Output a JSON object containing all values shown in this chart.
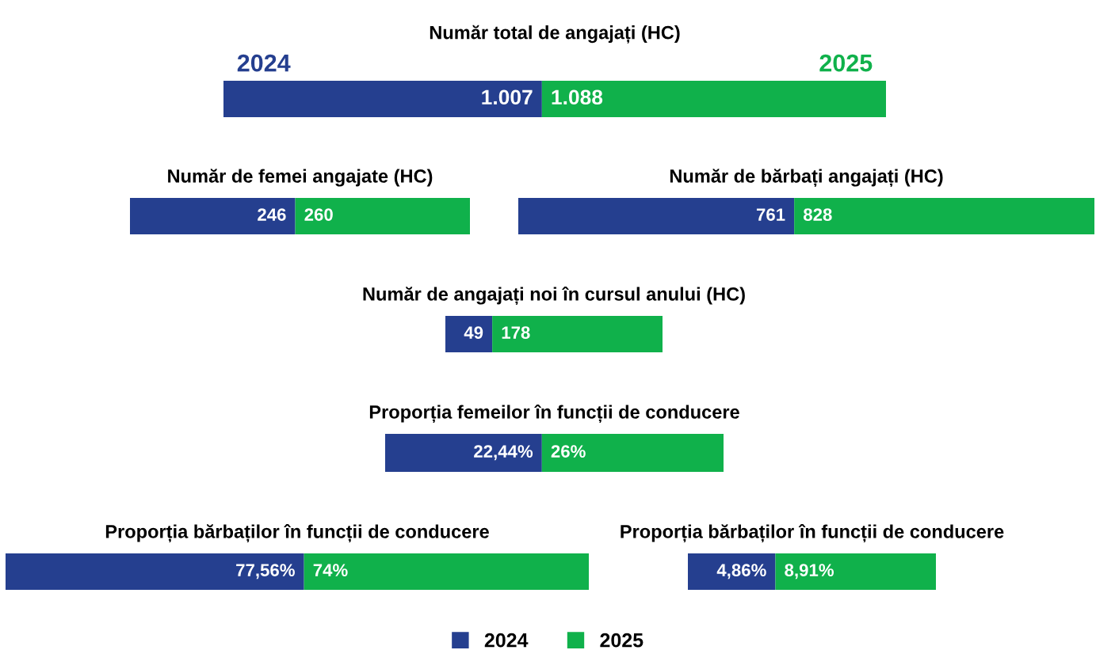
{
  "chart_data": [
    {
      "type": "bar",
      "orientation": "horizontal",
      "stacked": true,
      "title": "Număr total de angajați (HC)",
      "categories": [
        null
      ],
      "tick_labels": false,
      "data_labels": true,
      "legend": "bottom",
      "series": [
        {
          "name": "2024",
          "color": "#253f8f",
          "values": [
            1007
          ],
          "value_labels": [
            "1.007"
          ]
        },
        {
          "name": "2025",
          "color": "#10b14b",
          "values": [
            1088
          ],
          "value_labels": [
            "1.088"
          ]
        }
      ]
    },
    {
      "type": "bar",
      "orientation": "horizontal",
      "stacked": true,
      "title": "Număr de femei angajate (HC)",
      "categories": [
        null
      ],
      "tick_labels": false,
      "data_labels": true,
      "series": [
        {
          "color": "#253f8f",
          "values": [
            246
          ]
        },
        {
          "color": "#10b14b",
          "values": [
            260
          ]
        }
      ]
    },
    {
      "type": "bar",
      "orientation": "horizontal",
      "stacked": true,
      "title": "Număr de bărbați angajați (HC)",
      "categories": [
        null
      ],
      "tick_labels": false,
      "data_labels": true,
      "series": [
        {
          "color": "#253f8f",
          "values": [
            761
          ]
        },
        {
          "color": "#10b14b",
          "values": [
            828
          ]
        }
      ]
    },
    {
      "type": "bar",
      "orientation": "horizontal",
      "stacked": true,
      "title": "Număr de angajați noi în cursul anului (HC)",
      "categories": [
        null
      ],
      "tick_labels": false,
      "data_labels": true,
      "series": [
        {
          "color": "#253f8f",
          "values": [
            49
          ]
        },
        {
          "color": "#10b14b",
          "values": [
            178
          ]
        }
      ]
    },
    {
      "type": "bar",
      "orientation": "horizontal",
      "stacked": true,
      "title": "Proporția femeilor în funcții de conducere",
      "categories": [
        null
      ],
      "tick_labels": false,
      "data_labels": true,
      "series": [
        {
          "color": "#253f8f",
          "values": [
            22.44
          ],
          "value_labels": [
            "22,44%"
          ]
        },
        {
          "color": "#10b14b",
          "values": [
            26
          ],
          "value_labels": [
            "26%"
          ]
        }
      ]
    },
    {
      "type": "bar",
      "orientation": "horizontal",
      "stacked": true,
      "title": "Proporția bărbaților în funcții de conducere",
      "categories": [
        null
      ],
      "tick_labels": false,
      "data_labels": true,
      "series": [
        {
          "color": "#253f8f",
          "values": [
            77.56
          ],
          "value_labels": [
            "77,56%"
          ]
        },
        {
          "color": "#10b14b",
          "values": [
            74
          ],
          "value_labels": [
            "74%"
          ]
        }
      ]
    },
    {
      "type": "bar",
      "orientation": "horizontal",
      "stacked": true,
      "title": "Proporția bărbaților în funcții de conducere",
      "categories": [
        null
      ],
      "tick_labels": false,
      "data_labels": true,
      "series": [
        {
          "color": "#253f8f",
          "values": [
            4.86
          ],
          "value_labels": [
            "4,86%"
          ]
        },
        {
          "color": "#10b14b",
          "values": [
            8.91
          ],
          "value_labels": [
            "8,91%"
          ]
        }
      ]
    }
  ]
}
